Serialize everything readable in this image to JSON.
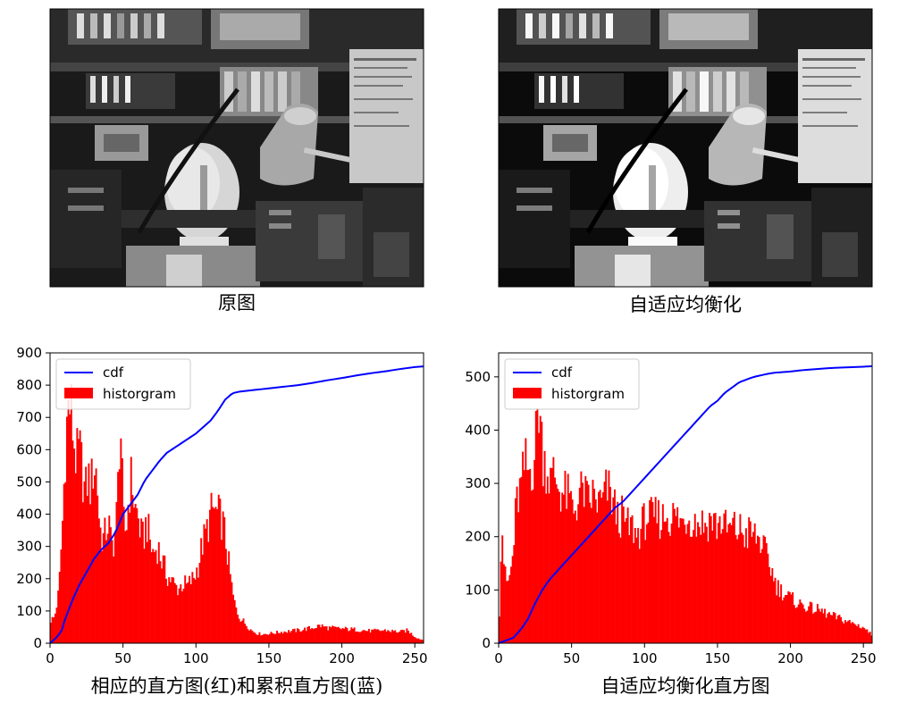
{
  "panels": {
    "top_left_title": "原图",
    "top_right_title": "自适应均衡化",
    "bottom_left_xlabel": "相应的直方图(红)和累积直方图(蓝)",
    "bottom_right_xlabel": "自适应均衡化直方图"
  },
  "legend": {
    "cdf": "cdf",
    "hist": "historgram"
  },
  "colors": {
    "hist": "#ff0000",
    "cdf": "#0000ff",
    "axis": "#000000"
  },
  "chart_data": [
    {
      "type": "bar",
      "xlim": [
        0,
        256
      ],
      "ylim": [
        0,
        900
      ],
      "xticks": [
        0,
        50,
        100,
        150,
        200,
        250
      ],
      "yticks": [
        0,
        100,
        200,
        300,
        400,
        500,
        600,
        700,
        800,
        900
      ],
      "legend_position": "upper-left",
      "hist_profile": [
        [
          0,
          70
        ],
        [
          3,
          80
        ],
        [
          6,
          160
        ],
        [
          9,
          420
        ],
        [
          10,
          560
        ],
        [
          12,
          720
        ],
        [
          14,
          740
        ],
        [
          16,
          640
        ],
        [
          18,
          560
        ],
        [
          20,
          600
        ],
        [
          22,
          540
        ],
        [
          24,
          460
        ],
        [
          26,
          520
        ],
        [
          28,
          480
        ],
        [
          30,
          560
        ],
        [
          32,
          520
        ],
        [
          34,
          360
        ],
        [
          36,
          320
        ],
        [
          38,
          340
        ],
        [
          40,
          380
        ],
        [
          42,
          300
        ],
        [
          44,
          320
        ],
        [
          46,
          420
        ],
        [
          47,
          560
        ],
        [
          48,
          700
        ],
        [
          49,
          600
        ],
        [
          50,
          380
        ],
        [
          52,
          340
        ],
        [
          54,
          460
        ],
        [
          56,
          520
        ],
        [
          58,
          420
        ],
        [
          60,
          400
        ],
        [
          62,
          340
        ],
        [
          64,
          320
        ],
        [
          66,
          380
        ],
        [
          68,
          330
        ],
        [
          70,
          280
        ],
        [
          72,
          290
        ],
        [
          74,
          300
        ],
        [
          76,
          260
        ],
        [
          78,
          240
        ],
        [
          80,
          210
        ],
        [
          82,
          200
        ],
        [
          84,
          190
        ],
        [
          86,
          175
        ],
        [
          88,
          170
        ],
        [
          90,
          180
        ],
        [
          92,
          185
        ],
        [
          94,
          175
        ],
        [
          96,
          190
        ],
        [
          98,
          200
        ],
        [
          100,
          220
        ],
        [
          102,
          250
        ],
        [
          104,
          300
        ],
        [
          106,
          330
        ],
        [
          108,
          360
        ],
        [
          110,
          400
        ],
        [
          112,
          415
        ],
        [
          114,
          400
        ],
        [
          116,
          395
        ],
        [
          118,
          380
        ],
        [
          120,
          330
        ],
        [
          122,
          260
        ],
        [
          124,
          190
        ],
        [
          126,
          130
        ],
        [
          128,
          100
        ],
        [
          130,
          80
        ],
        [
          134,
          60
        ],
        [
          138,
          40
        ],
        [
          142,
          30
        ],
        [
          146,
          28
        ],
        [
          150,
          30
        ],
        [
          160,
          36
        ],
        [
          170,
          40
        ],
        [
          180,
          48
        ],
        [
          185,
          55
        ],
        [
          190,
          48
        ],
        [
          200,
          45
        ],
        [
          210,
          42
        ],
        [
          220,
          38
        ],
        [
          230,
          40
        ],
        [
          240,
          35
        ],
        [
          245,
          40
        ],
        [
          250,
          20
        ],
        [
          254,
          12
        ],
        [
          256,
          10
        ]
      ],
      "cdf_profile": [
        [
          0,
          0
        ],
        [
          5,
          20
        ],
        [
          8,
          40
        ],
        [
          10,
          70
        ],
        [
          15,
          130
        ],
        [
          20,
          180
        ],
        [
          25,
          220
        ],
        [
          30,
          260
        ],
        [
          35,
          290
        ],
        [
          40,
          310
        ],
        [
          45,
          345
        ],
        [
          50,
          400
        ],
        [
          55,
          430
        ],
        [
          60,
          460
        ],
        [
          65,
          505
        ],
        [
          70,
          535
        ],
        [
          75,
          565
        ],
        [
          80,
          590
        ],
        [
          85,
          605
        ],
        [
          90,
          620
        ],
        [
          95,
          635
        ],
        [
          100,
          650
        ],
        [
          105,
          670
        ],
        [
          110,
          690
        ],
        [
          115,
          720
        ],
        [
          120,
          755
        ],
        [
          125,
          775
        ],
        [
          130,
          780
        ],
        [
          140,
          785
        ],
        [
          150,
          790
        ],
        [
          160,
          795
        ],
        [
          170,
          800
        ],
        [
          180,
          807
        ],
        [
          190,
          815
        ],
        [
          200,
          822
        ],
        [
          210,
          830
        ],
        [
          220,
          837
        ],
        [
          230,
          843
        ],
        [
          240,
          850
        ],
        [
          250,
          856
        ],
        [
          256,
          858
        ]
      ]
    },
    {
      "type": "bar",
      "xlim": [
        0,
        256
      ],
      "ylim": [
        0,
        545
      ],
      "xticks": [
        0,
        50,
        100,
        150,
        200,
        250
      ],
      "yticks": [
        0,
        100,
        200,
        300,
        400,
        500
      ],
      "legend_position": "upper-left",
      "hist_profile": [
        [
          0,
          0
        ],
        [
          2,
          240
        ],
        [
          4,
          130
        ],
        [
          6,
          110
        ],
        [
          8,
          130
        ],
        [
          10,
          170
        ],
        [
          12,
          260
        ],
        [
          14,
          280
        ],
        [
          16,
          300
        ],
        [
          18,
          340
        ],
        [
          20,
          320
        ],
        [
          22,
          330
        ],
        [
          24,
          340
        ],
        [
          26,
          400
        ],
        [
          27,
          460
        ],
        [
          28,
          440
        ],
        [
          30,
          360
        ],
        [
          32,
          340
        ],
        [
          34,
          320
        ],
        [
          36,
          300
        ],
        [
          38,
          320
        ],
        [
          40,
          300
        ],
        [
          42,
          290
        ],
        [
          44,
          280
        ],
        [
          46,
          280
        ],
        [
          48,
          270
        ],
        [
          50,
          260
        ],
        [
          52,
          250
        ],
        [
          54,
          270
        ],
        [
          56,
          280
        ],
        [
          58,
          290
        ],
        [
          60,
          270
        ],
        [
          62,
          260
        ],
        [
          64,
          280
        ],
        [
          66,
          270
        ],
        [
          68,
          265
        ],
        [
          70,
          260
        ],
        [
          72,
          270
        ],
        [
          74,
          290
        ],
        [
          76,
          280
        ],
        [
          78,
          270
        ],
        [
          80,
          250
        ],
        [
          82,
          230
        ],
        [
          84,
          240
        ],
        [
          86,
          230
        ],
        [
          88,
          220
        ],
        [
          90,
          215
        ],
        [
          92,
          220
        ],
        [
          94,
          200
        ],
        [
          96,
          210
        ],
        [
          98,
          220
        ],
        [
          100,
          230
        ],
        [
          102,
          240
        ],
        [
          104,
          235
        ],
        [
          106,
          230
        ],
        [
          108,
          240
        ],
        [
          110,
          235
        ],
        [
          112,
          230
        ],
        [
          114,
          245
        ],
        [
          116,
          240
        ],
        [
          118,
          235
        ],
        [
          120,
          240
        ],
        [
          122,
          235
        ],
        [
          124,
          230
        ],
        [
          126,
          225
        ],
        [
          128,
          235
        ],
        [
          130,
          240
        ],
        [
          132,
          235
        ],
        [
          134,
          230
        ],
        [
          136,
          225
        ],
        [
          138,
          230
        ],
        [
          140,
          225
        ],
        [
          142,
          220
        ],
        [
          144,
          230
        ],
        [
          146,
          235
        ],
        [
          148,
          225
        ],
        [
          150,
          220
        ],
        [
          152,
          230
        ],
        [
          154,
          225
        ],
        [
          156,
          215
        ],
        [
          158,
          210
        ],
        [
          160,
          220
        ],
        [
          162,
          215
        ],
        [
          164,
          210
        ],
        [
          166,
          215
        ],
        [
          168,
          205
        ],
        [
          170,
          200
        ],
        [
          172,
          210
        ],
        [
          174,
          205
        ],
        [
          176,
          200
        ],
        [
          178,
          195
        ],
        [
          180,
          190
        ],
        [
          182,
          175
        ],
        [
          184,
          160
        ],
        [
          186,
          145
        ],
        [
          188,
          130
        ],
        [
          190,
          110
        ],
        [
          195,
          95
        ],
        [
          200,
          85
        ],
        [
          205,
          75
        ],
        [
          210,
          70
        ],
        [
          215,
          65
        ],
        [
          220,
          62
        ],
        [
          225,
          55
        ],
        [
          230,
          50
        ],
        [
          235,
          45
        ],
        [
          240,
          40
        ],
        [
          245,
          35
        ],
        [
          250,
          30
        ],
        [
          254,
          20
        ],
        [
          256,
          15
        ]
      ],
      "cdf_profile": [
        [
          0,
          0
        ],
        [
          5,
          5
        ],
        [
          10,
          10
        ],
        [
          15,
          25
        ],
        [
          20,
          45
        ],
        [
          25,
          75
        ],
        [
          30,
          100
        ],
        [
          35,
          120
        ],
        [
          40,
          135
        ],
        [
          45,
          150
        ],
        [
          50,
          165
        ],
        [
          55,
          180
        ],
        [
          60,
          195
        ],
        [
          65,
          210
        ],
        [
          70,
          225
        ],
        [
          75,
          240
        ],
        [
          80,
          255
        ],
        [
          85,
          265
        ],
        [
          90,
          280
        ],
        [
          95,
          295
        ],
        [
          100,
          310
        ],
        [
          105,
          325
        ],
        [
          110,
          340
        ],
        [
          115,
          355
        ],
        [
          120,
          370
        ],
        [
          125,
          385
        ],
        [
          130,
          400
        ],
        [
          135,
          415
        ],
        [
          140,
          430
        ],
        [
          145,
          445
        ],
        [
          150,
          455
        ],
        [
          155,
          470
        ],
        [
          160,
          480
        ],
        [
          165,
          490
        ],
        [
          170,
          495
        ],
        [
          175,
          500
        ],
        [
          180,
          503
        ],
        [
          185,
          506
        ],
        [
          190,
          508
        ],
        [
          200,
          510
        ],
        [
          210,
          513
        ],
        [
          220,
          515
        ],
        [
          230,
          517
        ],
        [
          240,
          518
        ],
        [
          250,
          519
        ],
        [
          256,
          520
        ]
      ]
    }
  ]
}
